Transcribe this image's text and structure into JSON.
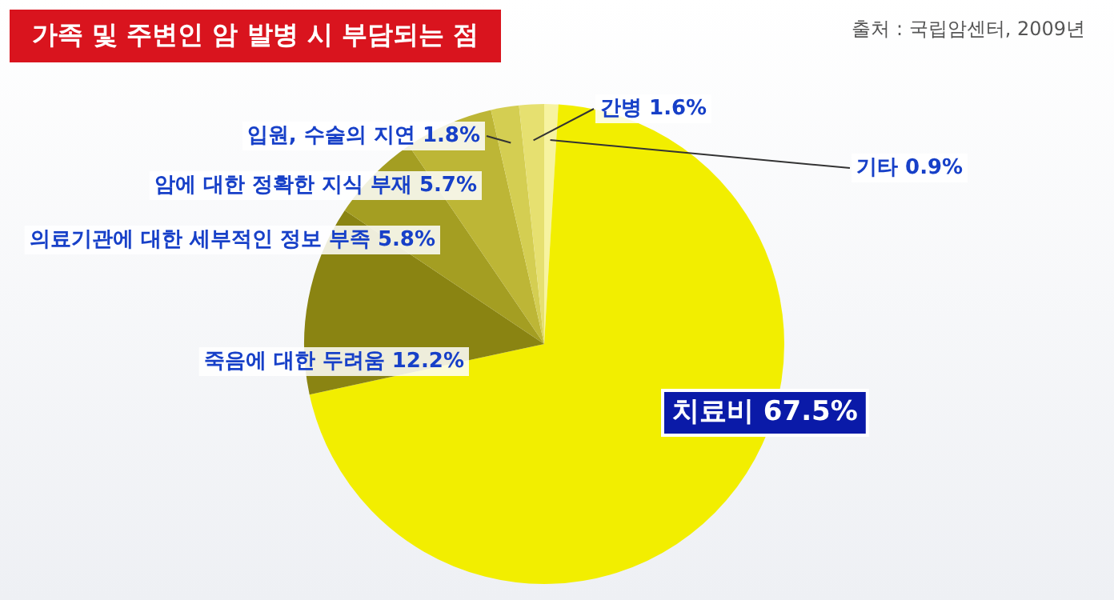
{
  "chart_data": {
    "type": "pie",
    "title": "가족 및 주변인 암 발병 시 부담되는 점",
    "annotations": [
      "출처 : 국립암센터, 2009년"
    ],
    "categories": [
      "기타",
      "치료비",
      "죽음에 대한 두려움",
      "의료기관에 대한 세부적인 정보 부족",
      "암에 대한 정확한 지식 부재",
      "입원, 수술의 지연",
      "간병"
    ],
    "values": [
      0.9,
      67.5,
      12.2,
      5.8,
      5.7,
      1.8,
      1.6
    ],
    "value_labels": [
      "0.9%",
      "67.5%",
      "12.2%",
      "5.8%",
      "5.7%",
      "1.8%",
      "1.6%"
    ],
    "colors": [
      "#f7f3a0",
      "#f2ee00",
      "#8a8412",
      "#a49e22",
      "#bdb636",
      "#d4ce52",
      "#e6e070"
    ],
    "legend": false
  }
}
